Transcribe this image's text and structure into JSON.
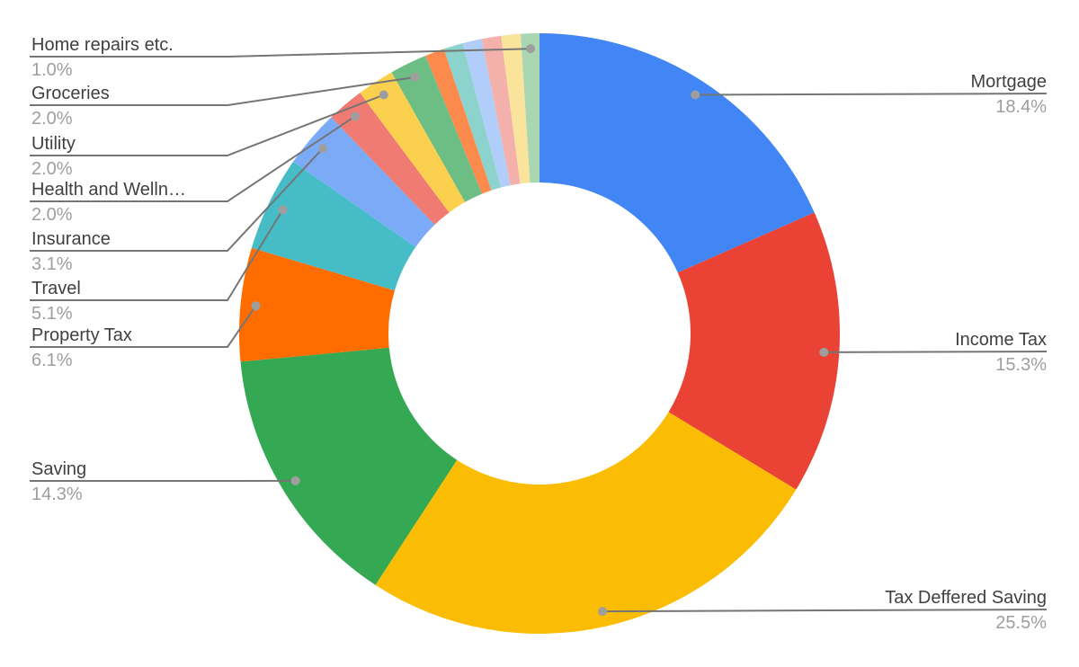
{
  "chart_data": {
    "type": "pie",
    "subtype": "donut",
    "pie_hole_ratio": 0.5,
    "title": "",
    "legend_position": "outside-leader-labels",
    "background": "#ffffff",
    "label_color": "#3f4043",
    "percent_color": "#9e9e9e",
    "leader_line_color": "#757575",
    "leader_dot_color": "#9e9e9e",
    "slices": [
      {
        "label": "Mortgage",
        "pct_label": "18.4%",
        "value": 18.4,
        "color": "#4285F4",
        "labeled": true,
        "label_side": "right"
      },
      {
        "label": "Income Tax",
        "pct_label": "15.3%",
        "value": 15.3,
        "color": "#EA4335",
        "labeled": true,
        "label_side": "right"
      },
      {
        "label": "Tax Deffered Saving",
        "pct_label": "25.5%",
        "value": 25.5,
        "color": "#FBBC04",
        "labeled": true,
        "label_side": "right"
      },
      {
        "label": "Saving",
        "pct_label": "14.3%",
        "value": 14.3,
        "color": "#34A853",
        "labeled": true,
        "label_side": "left"
      },
      {
        "label": "Property Tax",
        "pct_label": "6.1%",
        "value": 6.1,
        "color": "#FF6D01",
        "labeled": true,
        "label_side": "left"
      },
      {
        "label": "Travel",
        "pct_label": "5.1%",
        "value": 5.1,
        "color": "#46BDC6",
        "labeled": true,
        "label_side": "left"
      },
      {
        "label": "Insurance",
        "pct_label": "3.1%",
        "value": 3.1,
        "color": "#7BAAF7",
        "labeled": true,
        "label_side": "left"
      },
      {
        "label": "Health and Welln…",
        "pct_label": "2.0%",
        "value": 2.0,
        "color": "#F07B72",
        "labeled": true,
        "label_side": "left"
      },
      {
        "label": "Utility",
        "pct_label": "2.0%",
        "value": 2.0,
        "color": "#FCD04F",
        "labeled": true,
        "label_side": "left"
      },
      {
        "label": "Groceries",
        "pct_label": "2.0%",
        "value": 2.0,
        "color": "#6CBE84",
        "labeled": true,
        "label_side": "left"
      },
      {
        "label": null,
        "pct_label": null,
        "value": 1.04,
        "color": "#FC8A4D",
        "labeled": false,
        "label_side": null
      },
      {
        "label": null,
        "pct_label": null,
        "value": 1.04,
        "color": "#8CD3CE",
        "labeled": false,
        "label_side": null
      },
      {
        "label": null,
        "pct_label": null,
        "value": 1.04,
        "color": "#B1CDFA",
        "labeled": false,
        "label_side": null
      },
      {
        "label": null,
        "pct_label": null,
        "value": 1.04,
        "color": "#F4B1AC",
        "labeled": false,
        "label_side": null
      },
      {
        "label": null,
        "pct_label": null,
        "value": 1.04,
        "color": "#FAE49C",
        "labeled": false,
        "label_side": null
      },
      {
        "label": "Home repairs etc.",
        "pct_label": "1.0%",
        "value": 1.0,
        "color": "#A8D7B2",
        "labeled": true,
        "label_side": "left"
      }
    ]
  }
}
